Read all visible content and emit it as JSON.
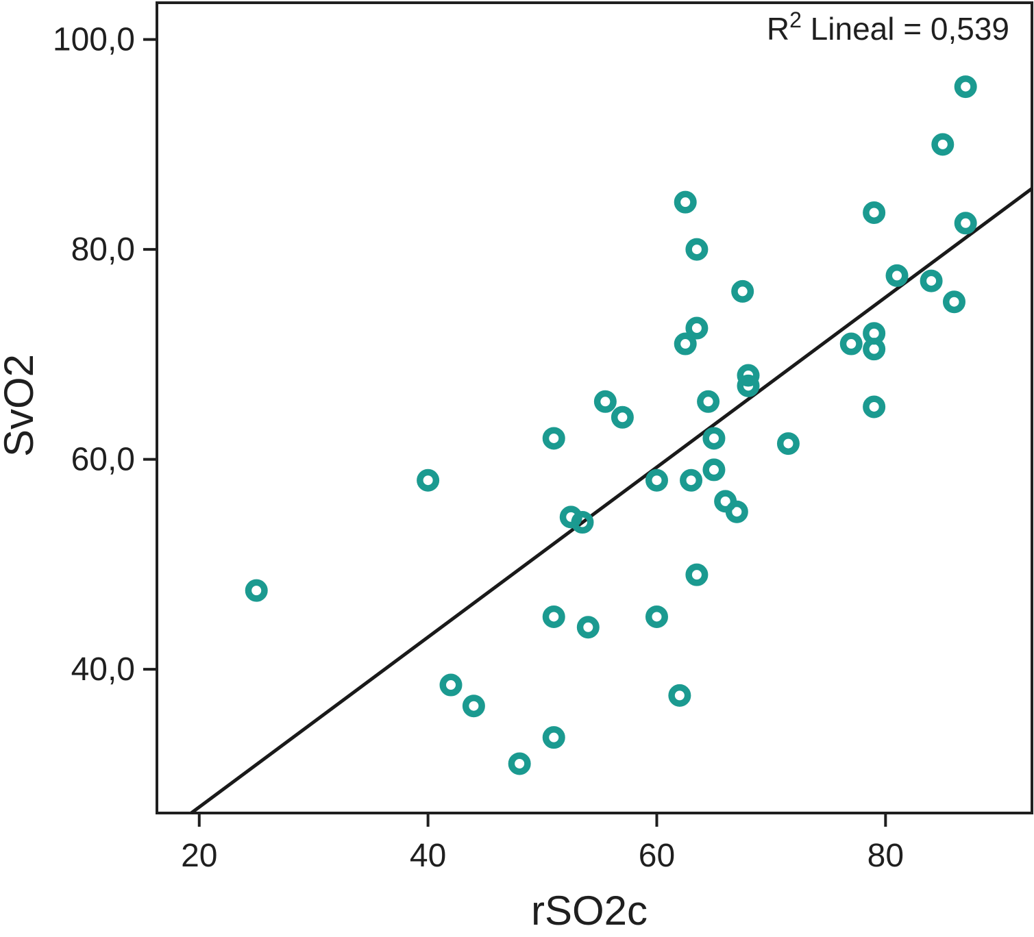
{
  "chart_data": {
    "type": "scatter",
    "title": "",
    "xlabel": "rSO2c",
    "ylabel": "SvO2",
    "annotation": {
      "prefix": "R",
      "superscript": "2",
      "rest": " Lineal = 0,539"
    },
    "x_ticks": {
      "values": [
        20,
        40,
        60,
        80
      ],
      "labels": [
        "20",
        "40",
        "60",
        "80"
      ]
    },
    "y_ticks": {
      "values": [
        100,
        80,
        60,
        40
      ],
      "labels": [
        "100,0",
        "80,0",
        "60,0",
        "40,0"
      ]
    },
    "xlim": [
      16.3,
      92.8
    ],
    "ylim": [
      26.3,
      103.5
    ],
    "grid": false,
    "legend": null,
    "points": [
      [
        25,
        47.5
      ],
      [
        40,
        58
      ],
      [
        42,
        38.5
      ],
      [
        44,
        36.5
      ],
      [
        48,
        31
      ],
      [
        51,
        33.5
      ],
      [
        51,
        45
      ],
      [
        51,
        62
      ],
      [
        52.5,
        54.5
      ],
      [
        53.5,
        54
      ],
      [
        54,
        44
      ],
      [
        55.5,
        65.5
      ],
      [
        57,
        64
      ],
      [
        60,
        45
      ],
      [
        60,
        58
      ],
      [
        62,
        37.5
      ],
      [
        62.5,
        84.5
      ],
      [
        62.5,
        71
      ],
      [
        63,
        58
      ],
      [
        63.5,
        80
      ],
      [
        63.5,
        72.5
      ],
      [
        63.5,
        49
      ],
      [
        64.5,
        65.5
      ],
      [
        65,
        62
      ],
      [
        65,
        59
      ],
      [
        66,
        56
      ],
      [
        67,
        55
      ],
      [
        67.5,
        76
      ],
      [
        68,
        68
      ],
      [
        68,
        67
      ],
      [
        71.5,
        61.5
      ],
      [
        77,
        71
      ],
      [
        79,
        83.5
      ],
      [
        79,
        72
      ],
      [
        79,
        70.5
      ],
      [
        79,
        65
      ],
      [
        81,
        77.5
      ],
      [
        84,
        77
      ],
      [
        85,
        90
      ],
      [
        86,
        75
      ],
      [
        87,
        95.5
      ],
      [
        87,
        82.5
      ]
    ],
    "trendline": {
      "x1": 19.3,
      "y1": 26.3,
      "x2": 92.8,
      "y2": 85.8
    },
    "colors": {
      "marker": "#1b9a90",
      "trendline": "#1a1a1a",
      "axis": "#1f1f1f",
      "text": "#1f1f1f",
      "background": "#ffffff"
    }
  }
}
